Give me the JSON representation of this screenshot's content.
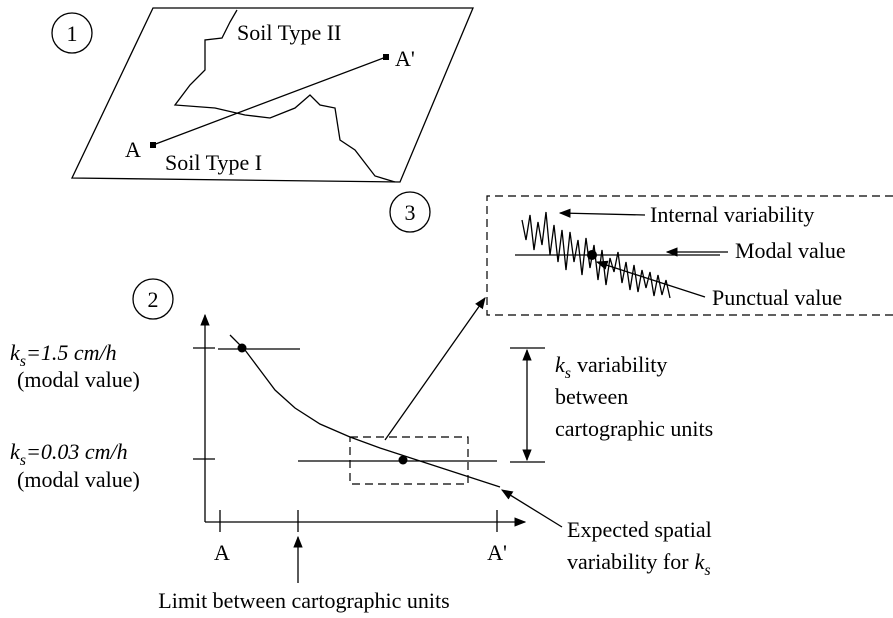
{
  "panel_labels": [
    "1",
    "2",
    "3"
  ],
  "map": {
    "soil_type_2": "Soil Type II",
    "soil_type_1": "Soil Type I",
    "point_a": "A",
    "point_a_prime": "A'"
  },
  "graph": {
    "y_label_high": {
      "symbol": "k",
      "subscript": "s",
      "text": "=1.5 cm/h",
      "note": "(modal value)"
    },
    "y_label_low": {
      "symbol": "k",
      "subscript": "s",
      "text": "=0.03 cm/h",
      "note": "(modal value)"
    },
    "x_labels": [
      "A",
      "A'"
    ],
    "variability_between": {
      "symbol": "k",
      "subscript": "s",
      "lines": [
        "variability",
        "between",
        "cartographic units"
      ]
    },
    "expected": {
      "lines": [
        "Expected spatial",
        "variability for"
      ],
      "symbol": "k",
      "subscript": "s"
    },
    "limit": "Limit between cartographic units"
  },
  "inset": {
    "internal": "Internal variability",
    "modal": "Modal value",
    "punctual": "Punctual value"
  }
}
